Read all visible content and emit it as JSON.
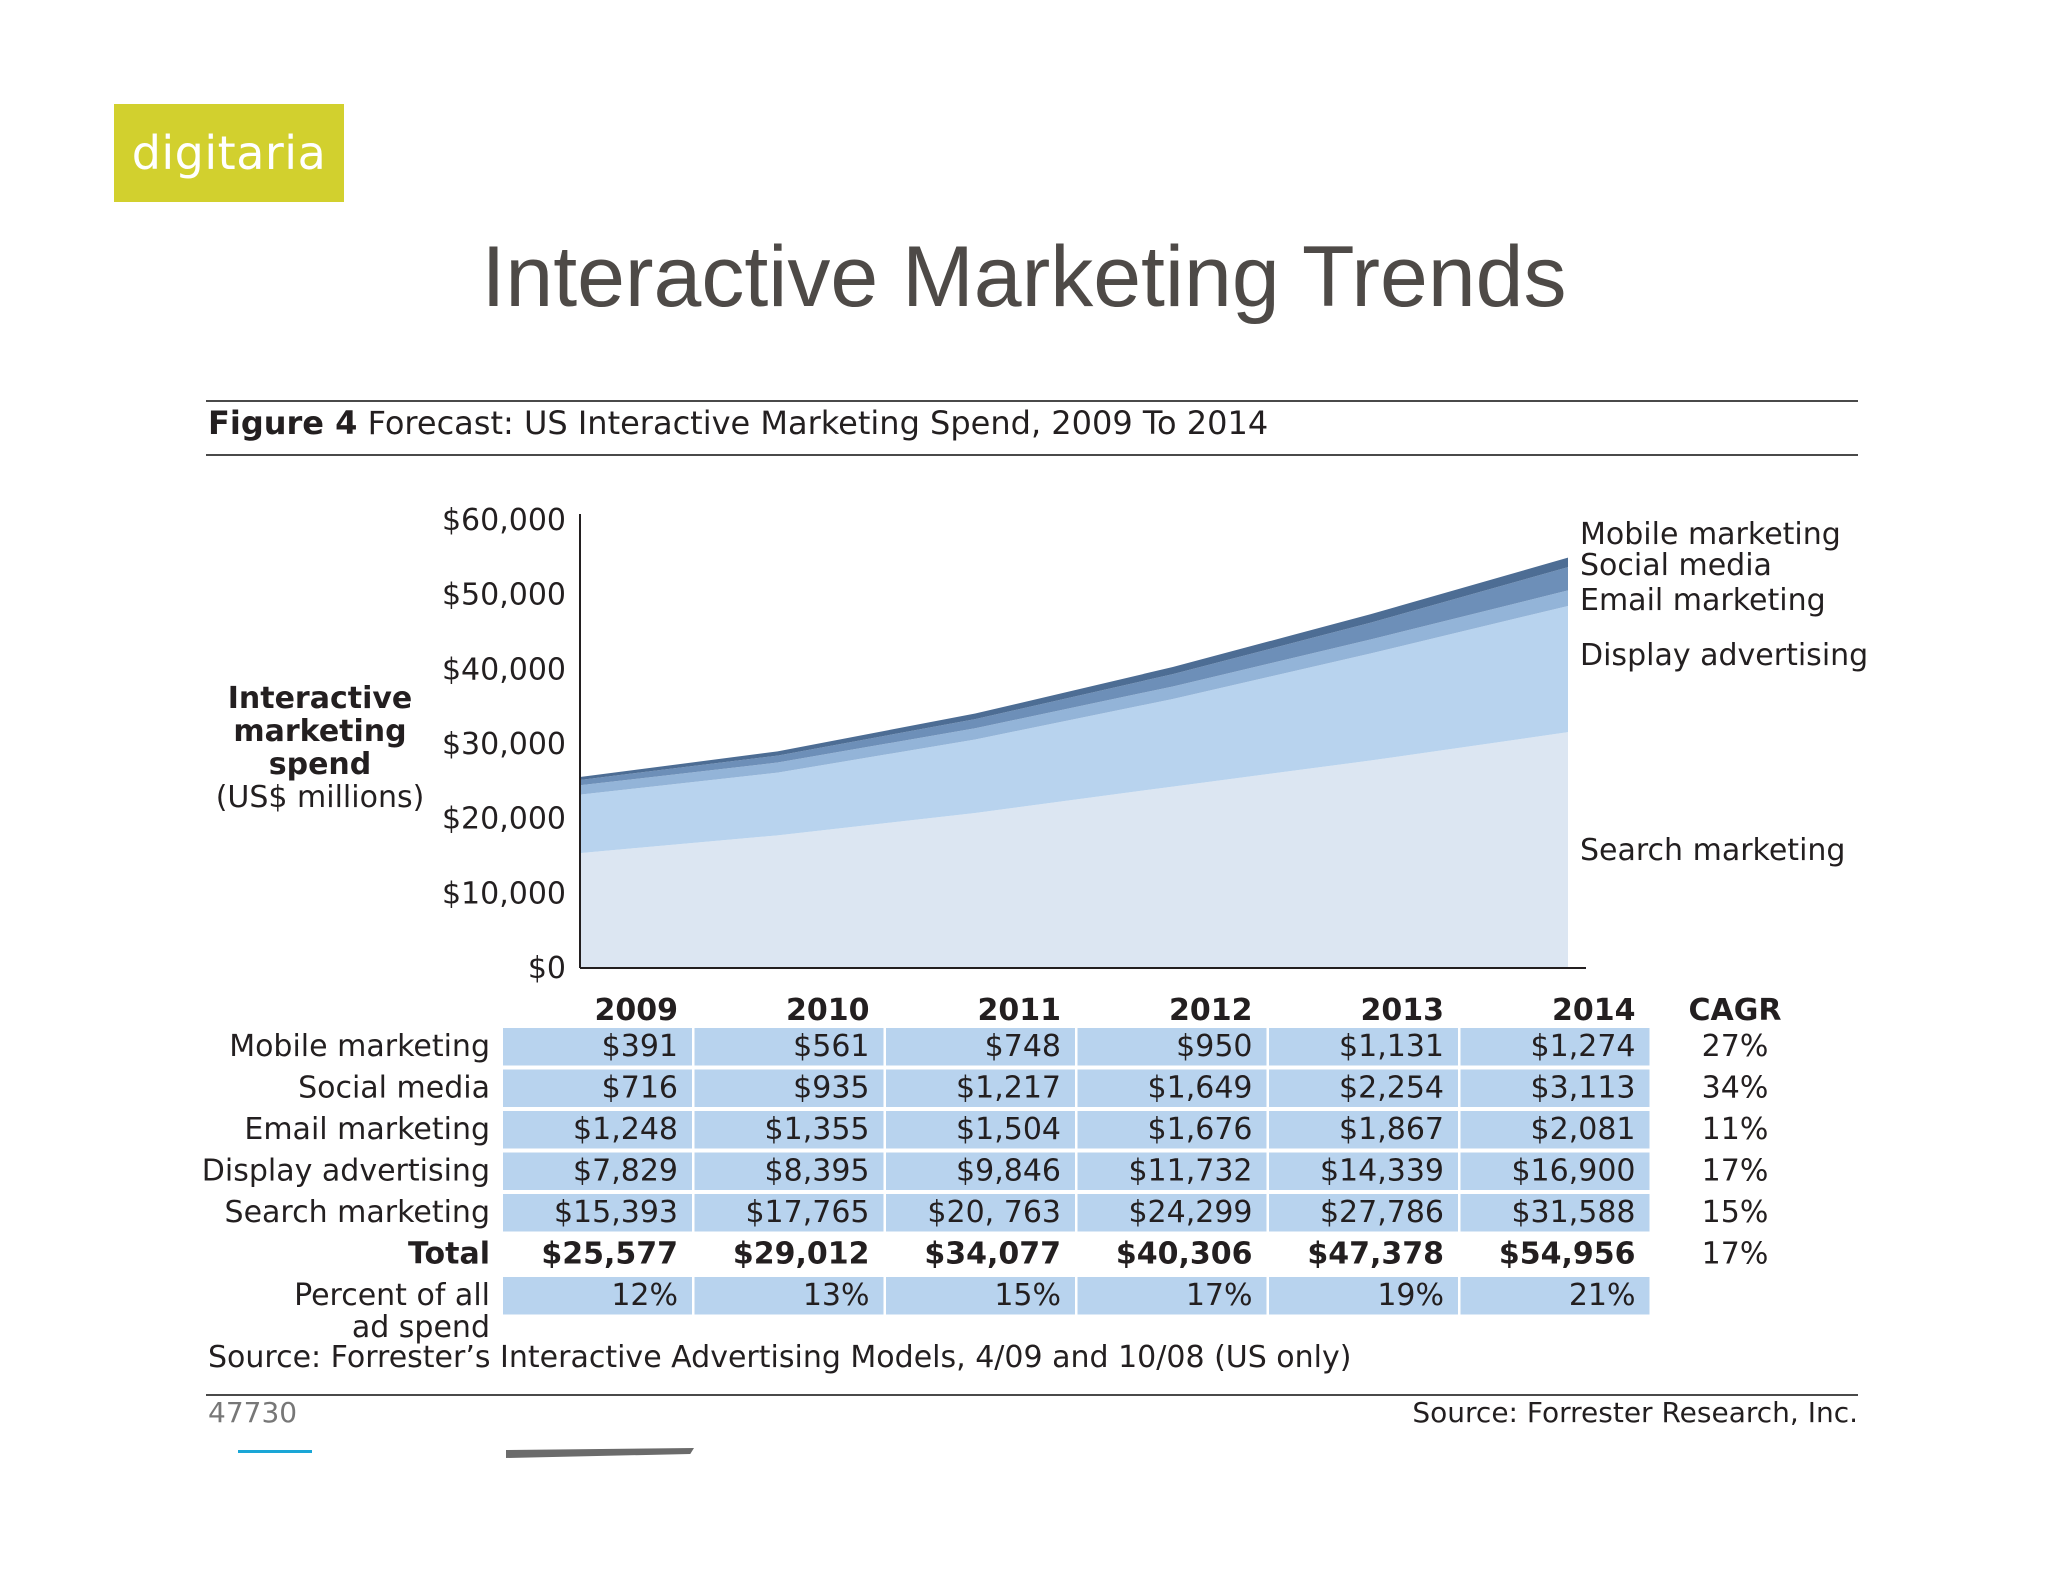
{
  "logo": {
    "text": "digitaria"
  },
  "slide_title": "Interactive Marketing Trends",
  "figure": {
    "label": "Figure 4",
    "title": "Forecast: US Interactive Marketing Spend, 2009 To 2014"
  },
  "chart_data": {
    "type": "area",
    "stacked": true,
    "ylabel_lines": [
      "Interactive",
      "marketing",
      "spend"
    ],
    "ylabel_unit": "(US$ millions)",
    "ylim": [
      0,
      60000
    ],
    "yticks": [
      0,
      10000,
      20000,
      30000,
      40000,
      50000,
      60000
    ],
    "ytick_labels": [
      "$0",
      "$10,000",
      "$20,000",
      "$30,000",
      "$40,000",
      "$50,000",
      "$60,000"
    ],
    "x": [
      "2009",
      "2010",
      "2011",
      "2012",
      "2013",
      "2014"
    ],
    "series": [
      {
        "name": "Search marketing",
        "values": [
          15393,
          17765,
          20763,
          24299,
          27786,
          31588
        ],
        "color": "#dce6f2"
      },
      {
        "name": "Display advertising",
        "values": [
          7829,
          8395,
          9846,
          11732,
          14339,
          16900
        ],
        "color": "#b8d3ee"
      },
      {
        "name": "Email marketing",
        "values": [
          1248,
          1355,
          1504,
          1676,
          1867,
          2081
        ],
        "color": "#93b4d8"
      },
      {
        "name": "Social media",
        "values": [
          716,
          935,
          1217,
          1649,
          2254,
          3113
        ],
        "color": "#6d8fb8"
      },
      {
        "name": "Mobile marketing",
        "values": [
          391,
          561,
          748,
          950,
          1131,
          1274
        ],
        "color": "#4d6d94"
      }
    ],
    "table": {
      "columns": [
        "2009",
        "2010",
        "2011",
        "2012",
        "2013",
        "2014"
      ],
      "cagr_header": "CAGR",
      "rows": [
        {
          "label": "Mobile marketing",
          "cells": [
            "$391",
            "$561",
            "$748",
            "$950",
            "$1,131",
            "$1,274"
          ],
          "cagr": "27%"
        },
        {
          "label": "Social media",
          "cells": [
            "$716",
            "$935",
            "$1,217",
            "$1,649",
            "$2,254",
            "$3,113"
          ],
          "cagr": "34%"
        },
        {
          "label": "Email marketing",
          "cells": [
            "$1,248",
            "$1,355",
            "$1,504",
            "$1,676",
            "$1,867",
            "$2,081"
          ],
          "cagr": "11%"
        },
        {
          "label": "Display advertising",
          "cells": [
            "$7,829",
            "$8,395",
            "$9,846",
            "$11,732",
            "$14,339",
            "$16,900"
          ],
          "cagr": "17%"
        },
        {
          "label": "Search marketing",
          "cells": [
            "$15,393",
            "$17,765",
            "$20, 763",
            "$24,299",
            "$27,786",
            "$31,588"
          ],
          "cagr": "15%"
        }
      ],
      "total": {
        "label": "Total",
        "cells": [
          "$25,577",
          "$29,012",
          "$34,077",
          "$40,306",
          "$47,378",
          "$54,956"
        ],
        "cagr": "17%"
      },
      "percent": {
        "label_lines": [
          "Percent of all",
          "ad spend"
        ],
        "cells": [
          "12%",
          "13%",
          "15%",
          "17%",
          "19%",
          "21%"
        ]
      }
    }
  },
  "source_line": "Source: Forrester’s Interactive Advertising Models, 4/09 and 10/08 (US only)",
  "figure_id": "47730",
  "credit": "Source: Forrester Research, Inc.",
  "colors": {
    "logo_bg": "#d2d02e",
    "table_cell": "#b8d3ee",
    "title_text": "#4e4a47"
  }
}
